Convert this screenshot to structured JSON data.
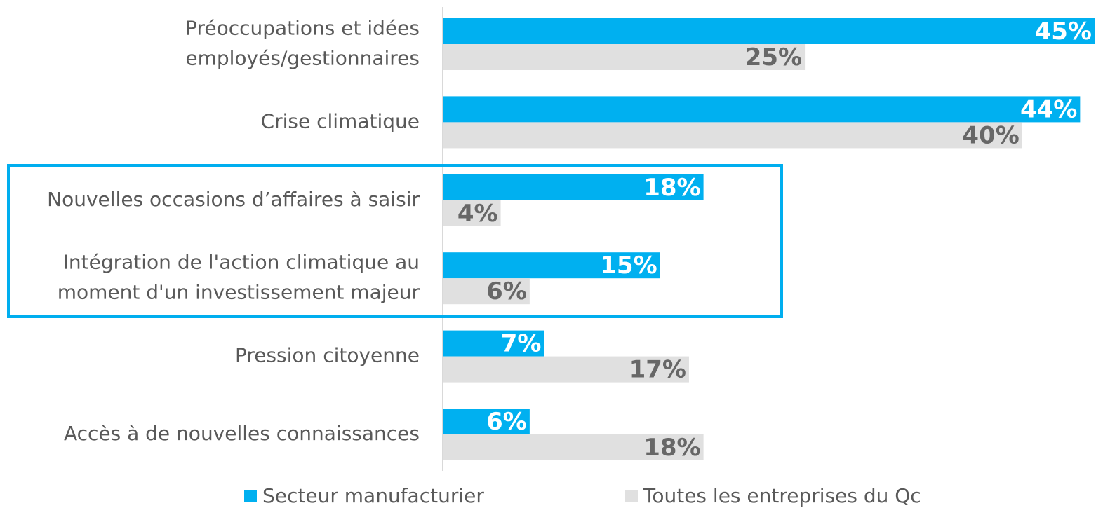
{
  "chart_data": {
    "type": "hbar",
    "categories": [
      "Préoccupations et idées\nemployés/gestionnaires",
      "Crise climatique",
      "Nouvelles occasions d’affaires à saisir",
      "Intégration de l'action climatique au\nmoment d'un investissement majeur",
      "Pression citoyenne",
      "Accès à de nouvelles connaissances"
    ],
    "series": [
      {
        "name": "Secteur manufacturier",
        "color": "#00b0f0",
        "values": [
          45,
          44,
          18,
          15,
          7,
          6
        ],
        "value_labels": [
          "45%",
          "44%",
          "18%",
          "15%",
          "7%",
          "6%"
        ]
      },
      {
        "name": "Toutes les entreprises du Qc",
        "color": "#e0e0e0",
        "values": [
          25,
          40,
          4,
          6,
          17,
          18
        ],
        "value_labels": [
          "25%",
          "40%",
          "4%",
          "6%",
          "17%",
          "18%"
        ]
      }
    ],
    "xlim": [
      0,
      45
    ]
  }
}
